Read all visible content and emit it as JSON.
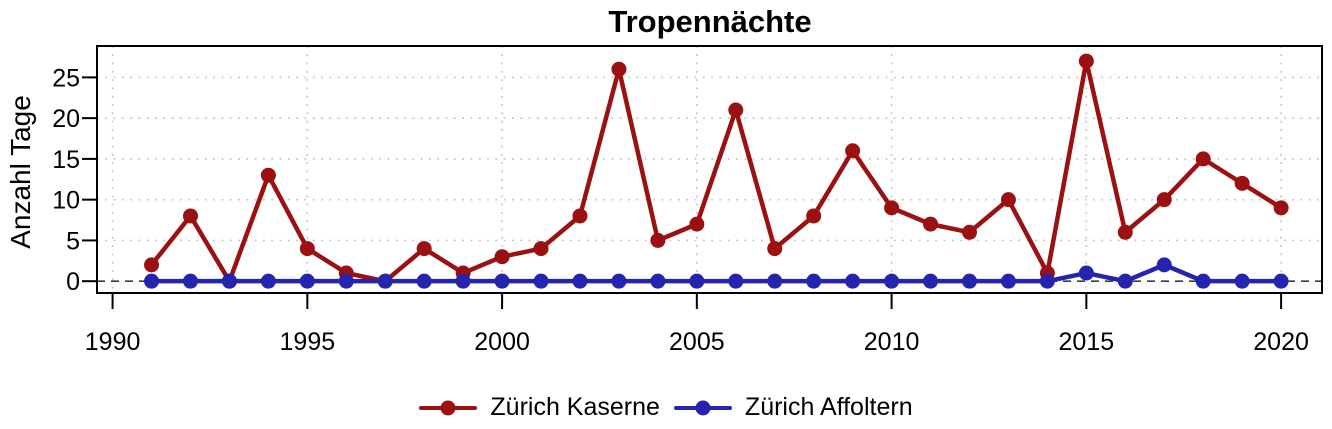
{
  "title": "Tropennächte",
  "chart_data": {
    "type": "line",
    "title": "Tropennächte",
    "xlabel": "",
    "ylabel": "Anzahl Tage",
    "x": [
      1991,
      1992,
      1993,
      1994,
      1995,
      1996,
      1997,
      1998,
      1999,
      2000,
      2001,
      2002,
      2003,
      2004,
      2005,
      2006,
      2007,
      2008,
      2009,
      2010,
      2011,
      2012,
      2013,
      2014,
      2015,
      2016,
      2017,
      2018,
      2019,
      2020
    ],
    "series": [
      {
        "name": "Zürich Kaserne",
        "color": "#9B1010",
        "values": [
          2,
          8,
          0,
          13,
          4,
          1,
          0,
          4,
          1,
          3,
          4,
          8,
          26,
          5,
          7,
          21,
          4,
          8,
          16,
          9,
          7,
          6,
          10,
          1,
          27,
          6,
          10,
          15,
          12,
          9
        ]
      },
      {
        "name": "Zürich Affoltern",
        "color": "#2424AE",
        "values": [
          0,
          0,
          0,
          0,
          0,
          0,
          0,
          0,
          0,
          0,
          0,
          0,
          0,
          0,
          0,
          0,
          0,
          0,
          0,
          0,
          0,
          0,
          0,
          0,
          1,
          0,
          2,
          0,
          0,
          0
        ]
      }
    ],
    "x_ticks": [
      1990,
      1995,
      2000,
      2005,
      2010,
      2015,
      2020
    ],
    "x_tick_labels": [
      "1990",
      "1995",
      "2000",
      "2005",
      "2010",
      "2015",
      "2020"
    ],
    "y_ticks": [
      0,
      5,
      10,
      15,
      20,
      25
    ],
    "y_tick_labels": [
      "0",
      "5",
      "10",
      "15",
      "20",
      "25"
    ],
    "xlim": [
      1989.6,
      2021.05
    ],
    "ylim": [
      -1.45,
      28.85
    ],
    "grid": true,
    "grid_color": "#c3c3c3",
    "zero_line": "dashed",
    "zero_line_color": "#3a3a3a",
    "legend_position": "bottom"
  },
  "legend": {
    "items": [
      {
        "label": "Zürich Kaserne",
        "color": "#9B1010"
      },
      {
        "label": "Zürich Affoltern",
        "color": "#2424AE"
      }
    ]
  }
}
